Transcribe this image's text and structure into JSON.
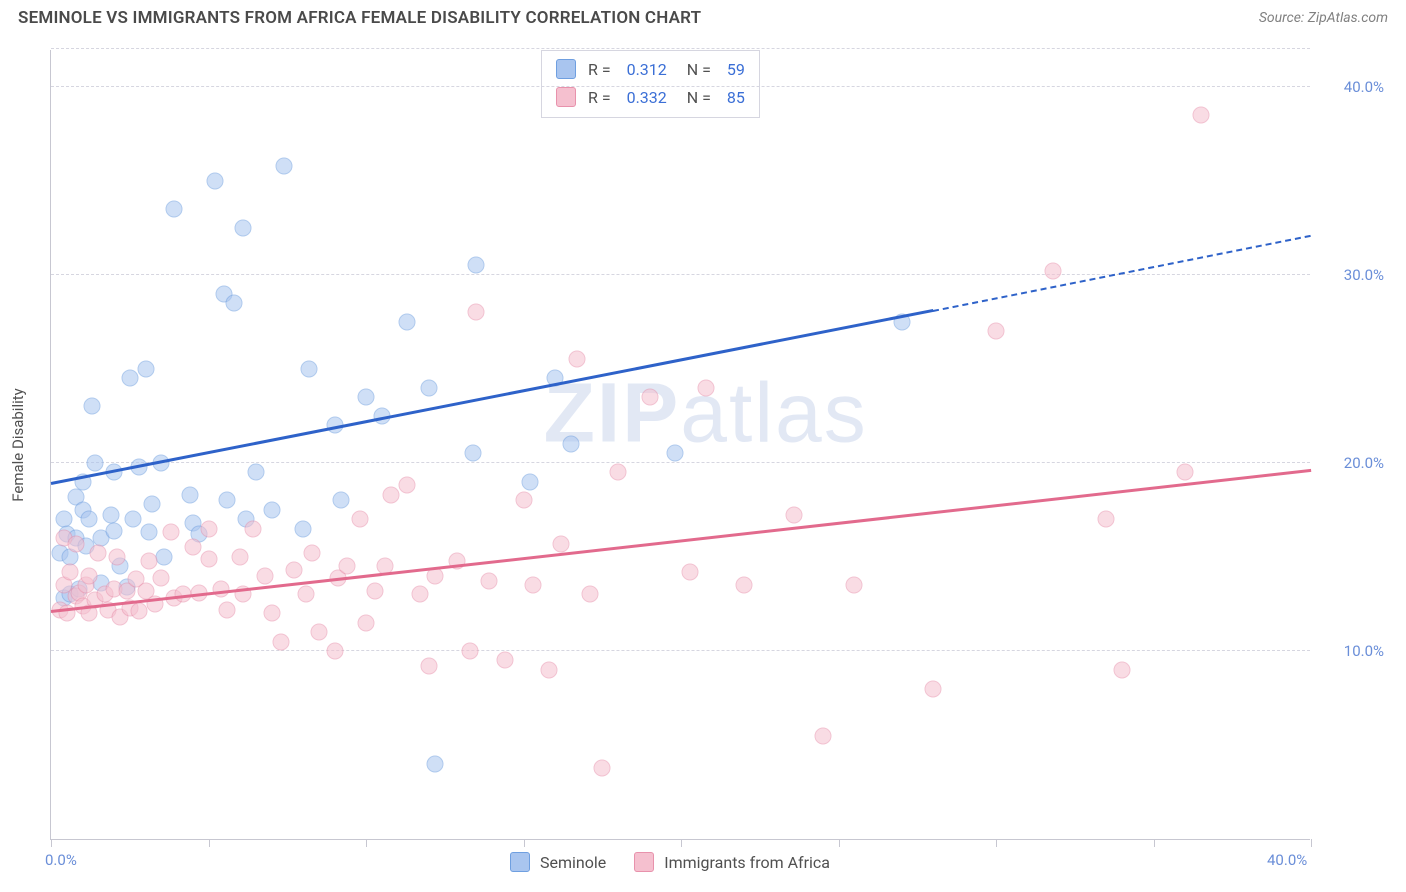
{
  "header": {
    "title": "SEMINOLE VS IMMIGRANTS FROM AFRICA FEMALE DISABILITY CORRELATION CHART",
    "source_prefix": "Source: ",
    "source_name": "ZipAtlas.com"
  },
  "watermark": {
    "bold": "ZIP",
    "rest": "atlas"
  },
  "chart": {
    "type": "scatter",
    "ylabel": "Female Disability",
    "xlim": [
      0,
      40
    ],
    "ylim": [
      0,
      42
    ],
    "xlim_labels": [
      "0.0%",
      "40.0%"
    ],
    "ytick_values": [
      10,
      20,
      30,
      40
    ],
    "ytick_labels": [
      "10.0%",
      "20.0%",
      "30.0%",
      "40.0%"
    ],
    "xtick_values": [
      0,
      5,
      10,
      15,
      20,
      25,
      30,
      35,
      40
    ],
    "grid_color": "#d6d6e0",
    "axis_color": "#c7c7d1",
    "background_color": "#ffffff",
    "marker_radius": 8.5,
    "marker_opacity": 0.55,
    "marker_border_opacity": 0.9,
    "trend_width": 3,
    "series": [
      {
        "key": "seminole",
        "label": "Seminole",
        "color_fill": "#a9c5ef",
        "color_border": "#6f9fe0",
        "color_line": "#2e62c9",
        "R": "0.312",
        "N": "59",
        "trend": {
          "x1": 0,
          "y1": 18.8,
          "x2": 28,
          "y2": 28.0
        },
        "trend_extend": {
          "x1": 28,
          "y1": 28.0,
          "x2": 40,
          "y2": 32.0
        },
        "points": [
          [
            0.3,
            15.2
          ],
          [
            0.4,
            17.0
          ],
          [
            0.4,
            12.8
          ],
          [
            0.5,
            16.2
          ],
          [
            0.6,
            13.0
          ],
          [
            0.6,
            15.0
          ],
          [
            0.8,
            18.2
          ],
          [
            0.8,
            16.0
          ],
          [
            0.9,
            13.3
          ],
          [
            1.0,
            19.0
          ],
          [
            1.0,
            17.5
          ],
          [
            1.1,
            15.6
          ],
          [
            1.2,
            17.0
          ],
          [
            1.3,
            23.0
          ],
          [
            1.4,
            20.0
          ],
          [
            1.6,
            13.6
          ],
          [
            1.6,
            16.0
          ],
          [
            1.9,
            17.2
          ],
          [
            2.0,
            19.5
          ],
          [
            2.0,
            16.4
          ],
          [
            2.2,
            14.5
          ],
          [
            2.4,
            13.4
          ],
          [
            2.5,
            24.5
          ],
          [
            2.6,
            17.0
          ],
          [
            2.8,
            19.8
          ],
          [
            3.0,
            25.0
          ],
          [
            3.1,
            16.3
          ],
          [
            3.2,
            17.8
          ],
          [
            3.5,
            20.0
          ],
          [
            3.6,
            15.0
          ],
          [
            3.9,
            33.5
          ],
          [
            4.4,
            18.3
          ],
          [
            4.5,
            16.8
          ],
          [
            4.7,
            16.2
          ],
          [
            5.2,
            35.0
          ],
          [
            5.5,
            29.0
          ],
          [
            5.6,
            18.0
          ],
          [
            5.8,
            28.5
          ],
          [
            6.1,
            32.5
          ],
          [
            6.2,
            17.0
          ],
          [
            6.5,
            19.5
          ],
          [
            7.0,
            17.5
          ],
          [
            7.4,
            35.8
          ],
          [
            8.0,
            16.5
          ],
          [
            8.2,
            25.0
          ],
          [
            9.0,
            22.0
          ],
          [
            9.2,
            18.0
          ],
          [
            10.0,
            23.5
          ],
          [
            10.5,
            22.5
          ],
          [
            11.3,
            27.5
          ],
          [
            12.0,
            24.0
          ],
          [
            12.2,
            4.0
          ],
          [
            13.4,
            20.5
          ],
          [
            13.5,
            30.5
          ],
          [
            15.2,
            19.0
          ],
          [
            16.0,
            24.5
          ],
          [
            16.5,
            21.0
          ],
          [
            19.8,
            20.5
          ],
          [
            27.0,
            27.5
          ]
        ]
      },
      {
        "key": "africa",
        "label": "Immigrants from Africa",
        "color_fill": "#f5c0cf",
        "color_border": "#e892ac",
        "color_line": "#e26a8d",
        "R": "0.332",
        "N": "85",
        "trend": {
          "x1": 0,
          "y1": 12.0,
          "x2": 40,
          "y2": 19.5
        },
        "points": [
          [
            0.3,
            12.2
          ],
          [
            0.4,
            16.0
          ],
          [
            0.4,
            13.5
          ],
          [
            0.5,
            12.0
          ],
          [
            0.6,
            14.2
          ],
          [
            0.8,
            12.9
          ],
          [
            0.8,
            15.7
          ],
          [
            0.9,
            13.1
          ],
          [
            1.0,
            12.4
          ],
          [
            1.1,
            13.5
          ],
          [
            1.2,
            12.0
          ],
          [
            1.2,
            14.0
          ],
          [
            1.4,
            12.7
          ],
          [
            1.5,
            15.2
          ],
          [
            1.7,
            13.0
          ],
          [
            1.8,
            12.2
          ],
          [
            2.0,
            13.3
          ],
          [
            2.1,
            15.0
          ],
          [
            2.2,
            11.8
          ],
          [
            2.4,
            13.2
          ],
          [
            2.5,
            12.3
          ],
          [
            2.7,
            13.8
          ],
          [
            2.8,
            12.1
          ],
          [
            3.0,
            13.2
          ],
          [
            3.1,
            14.8
          ],
          [
            3.3,
            12.5
          ],
          [
            3.5,
            13.9
          ],
          [
            3.8,
            16.3
          ],
          [
            3.9,
            12.8
          ],
          [
            4.2,
            13.0
          ],
          [
            4.5,
            15.5
          ],
          [
            4.7,
            13.1
          ],
          [
            5.0,
            14.9
          ],
          [
            5.0,
            16.5
          ],
          [
            5.4,
            13.3
          ],
          [
            5.6,
            12.2
          ],
          [
            6.0,
            15.0
          ],
          [
            6.1,
            13.0
          ],
          [
            6.4,
            16.5
          ],
          [
            6.8,
            14.0
          ],
          [
            7.0,
            12.0
          ],
          [
            7.3,
            10.5
          ],
          [
            7.7,
            14.3
          ],
          [
            8.1,
            13.0
          ],
          [
            8.3,
            15.2
          ],
          [
            8.5,
            11.0
          ],
          [
            9.0,
            10.0
          ],
          [
            9.1,
            13.9
          ],
          [
            9.4,
            14.5
          ],
          [
            9.8,
            17.0
          ],
          [
            10.0,
            11.5
          ],
          [
            10.3,
            13.2
          ],
          [
            10.6,
            14.5
          ],
          [
            10.8,
            18.3
          ],
          [
            11.3,
            18.8
          ],
          [
            11.7,
            13.0
          ],
          [
            12.0,
            9.2
          ],
          [
            12.2,
            14.0
          ],
          [
            12.9,
            14.8
          ],
          [
            13.3,
            10.0
          ],
          [
            13.5,
            28.0
          ],
          [
            13.9,
            13.7
          ],
          [
            14.4,
            9.5
          ],
          [
            15.0,
            18.0
          ],
          [
            15.3,
            13.5
          ],
          [
            15.8,
            9.0
          ],
          [
            16.2,
            15.7
          ],
          [
            16.7,
            25.5
          ],
          [
            17.1,
            13.0
          ],
          [
            17.5,
            3.8
          ],
          [
            18.0,
            19.5
          ],
          [
            19.0,
            23.5
          ],
          [
            20.3,
            14.2
          ],
          [
            20.8,
            24.0
          ],
          [
            22.0,
            13.5
          ],
          [
            23.6,
            17.2
          ],
          [
            24.5,
            5.5
          ],
          [
            25.5,
            13.5
          ],
          [
            28.0,
            8.0
          ],
          [
            30.0,
            27.0
          ],
          [
            31.8,
            30.2
          ],
          [
            33.5,
            17.0
          ],
          [
            34.0,
            9.0
          ],
          [
            36.0,
            19.5
          ],
          [
            36.5,
            38.5
          ]
        ]
      }
    ]
  }
}
